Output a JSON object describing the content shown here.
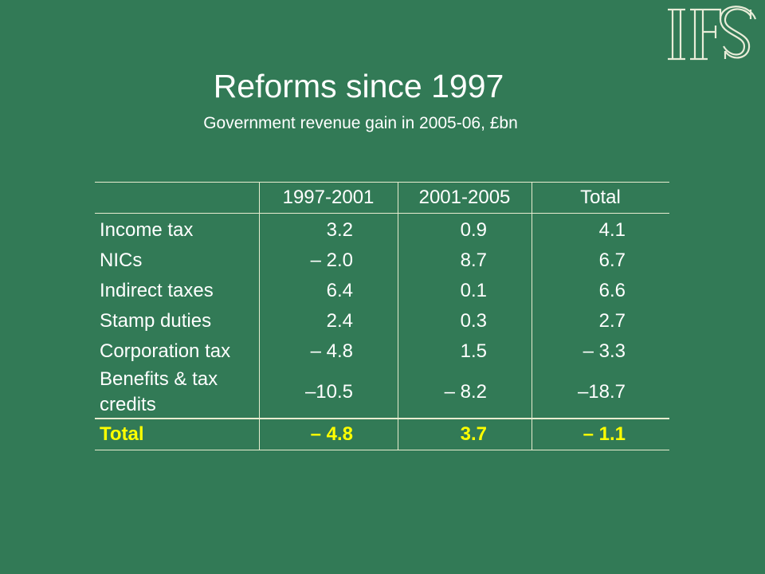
{
  "logo": {
    "text": "IFS"
  },
  "title": "Reforms since 1997",
  "subtitle": "Government revenue gain in 2005-06, £bn",
  "table": {
    "columns": [
      "",
      "1997-2001",
      "2001-2005",
      "Total"
    ],
    "rows": [
      {
        "label": "Income tax",
        "values": [
          "3.2",
          "0.9",
          "4.1"
        ]
      },
      {
        "label": "NICs",
        "values": [
          "– 2.0",
          "8.7",
          "6.7"
        ]
      },
      {
        "label": "Indirect taxes",
        "values": [
          "6.4",
          "0.1",
          "6.6"
        ]
      },
      {
        "label": "Stamp duties",
        "values": [
          "2.4",
          "0.3",
          "2.7"
        ]
      },
      {
        "label": "Corporation tax",
        "values": [
          "– 4.8",
          "1.5",
          "– 3.3"
        ]
      },
      {
        "label_line1": "Benefits & tax",
        "label_line2": "credits",
        "values": [
          "–10.5",
          "– 8.2",
          "–18.7"
        ]
      }
    ],
    "total": {
      "label": "Total",
      "values": [
        "– 4.8",
        "3.7",
        "– 1.1"
      ]
    }
  }
}
